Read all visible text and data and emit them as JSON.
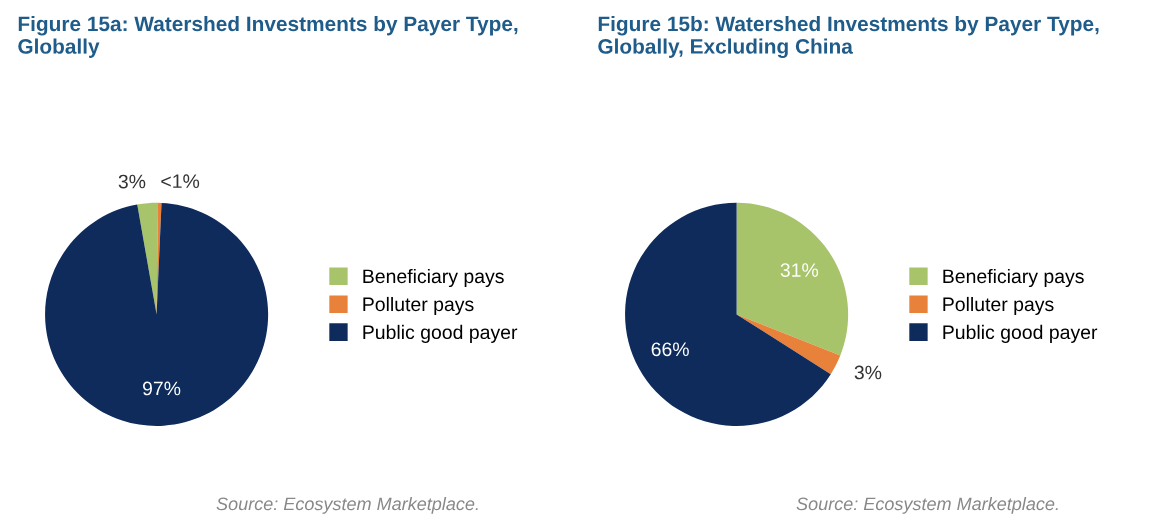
{
  "chart_data": [
    {
      "type": "pie",
      "title": "Figure 15a: Watershed Investments by Payer Type, Globally",
      "categories": [
        "Beneficiary pays",
        "Polluter pays",
        "Public good payer"
      ],
      "values": [
        3,
        0.5,
        97
      ],
      "value_labels": [
        "3%",
        "<1%",
        "97%"
      ],
      "colors": [
        "#a8c46a",
        "#e8823a",
        "#0e2b5c"
      ],
      "legend": "right",
      "annotations": [
        "Source: Ecosystem Marketplace."
      ]
    },
    {
      "type": "pie",
      "title": "Figure 15b: Watershed Investments by Payer Type, Globally, Excluding China",
      "categories": [
        "Beneficiary pays",
        "Polluter pays",
        "Public good payer"
      ],
      "values": [
        31,
        3,
        66
      ],
      "value_labels": [
        "31%",
        "3%",
        "66%"
      ],
      "colors": [
        "#a8c46a",
        "#e8823a",
        "#0e2b5c"
      ],
      "legend": "right",
      "annotations": [
        "Source: Ecosystem Marketplace."
      ]
    }
  ]
}
